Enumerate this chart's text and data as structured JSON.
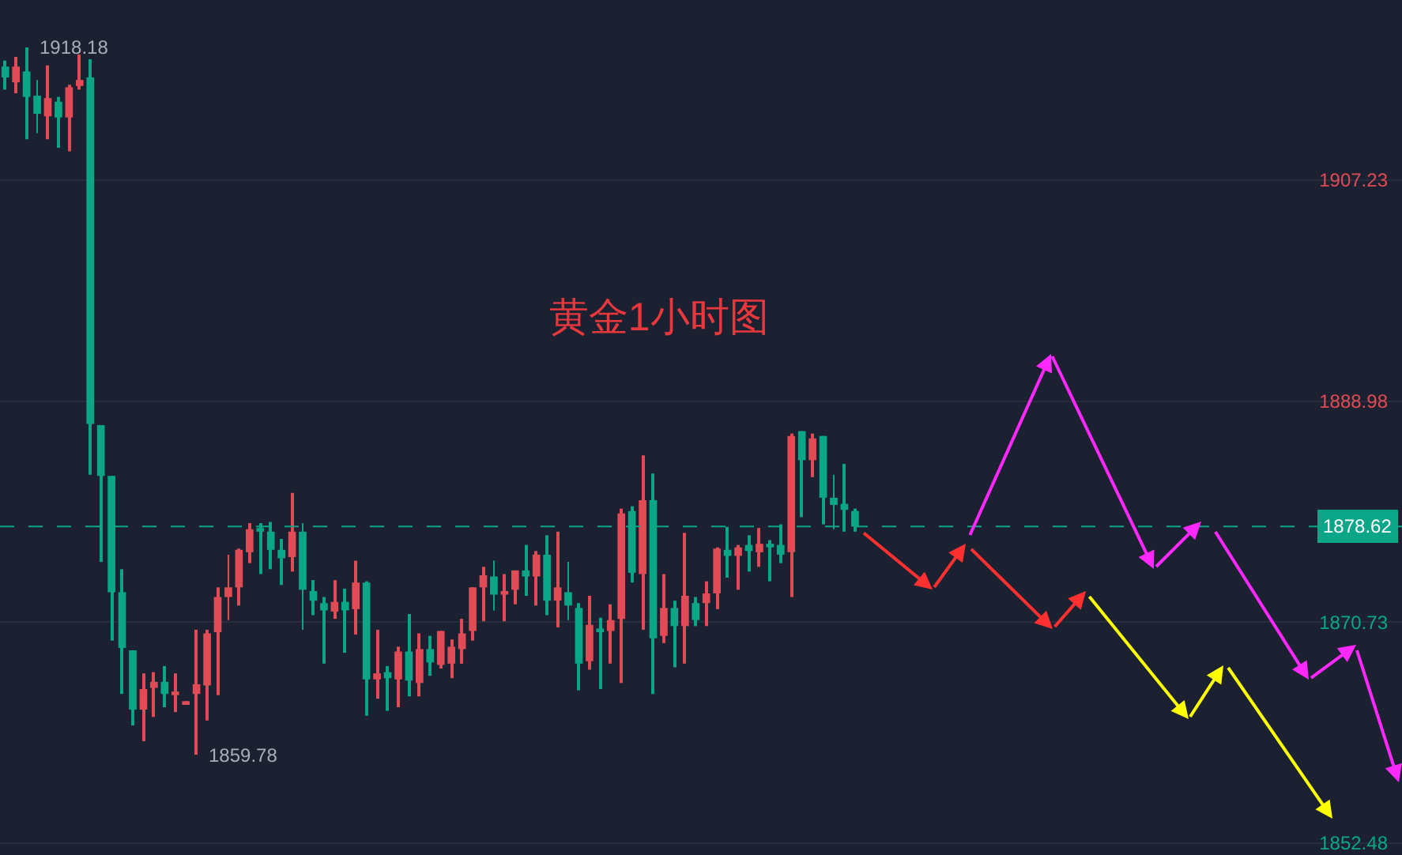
{
  "chart_data": {
    "type": "candlestick",
    "title": "黄金1小时图",
    "categories": [
      null,
      null,
      null,
      null,
      null,
      null,
      null,
      null,
      null,
      null,
      null,
      null,
      null,
      null,
      null,
      null,
      null,
      null,
      null,
      null,
      null,
      null,
      null,
      null,
      null,
      null,
      null,
      null,
      null,
      null,
      null,
      null,
      null,
      null,
      null,
      null,
      null,
      null,
      null,
      null,
      null,
      null,
      null,
      null,
      null,
      null,
      null,
      null,
      null,
      null,
      null,
      null,
      null,
      null,
      null,
      null,
      null,
      null,
      null,
      null,
      null,
      null,
      null,
      null,
      null,
      null,
      null,
      null,
      null,
      null,
      null,
      null,
      null,
      null,
      null,
      null,
      null,
      null,
      null,
      null,
      null,
      null,
      null,
      null,
      null,
      null,
      null,
      null,
      null,
      null,
      null,
      null,
      null,
      null,
      null,
      null,
      null,
      null,
      null,
      null,
      null,
      null,
      null,
      null,
      null,
      null,
      null,
      null,
      null,
      null,
      null,
      null,
      null,
      null,
      null,
      null,
      null,
      null,
      null,
      null,
      null,
      null,
      null,
      null,
      null,
      null,
      null,
      null,
      null,
      null,
      null,
      null
    ],
    "ohlc": [
      [
        1916.6,
        1917.1,
        1914.7,
        1915.7
      ],
      [
        1915.3,
        1917.4,
        1914.4,
        1916.6
      ],
      [
        1916.2,
        1918.18,
        1910.6,
        1914.1
      ],
      [
        1914.2,
        1915.5,
        1911.1,
        1912.7
      ],
      [
        1912.5,
        1916.7,
        1910.6,
        1914.0
      ],
      [
        1913.7,
        1914.1,
        1909.9,
        1912.4
      ],
      [
        1912.4,
        1915.1,
        1909.6,
        1914.9
      ],
      [
        1915.0,
        1917.6,
        1914.7,
        1915.5
      ],
      [
        1915.7,
        1917.2,
        1882.9,
        1887.1
      ],
      [
        1887.0,
        1887.0,
        1875.7,
        1882.8
      ],
      [
        1882.8,
        1882.8,
        1869.2,
        1873.2
      ],
      [
        1873.2,
        1875.1,
        1864.8,
        1868.6
      ],
      [
        1868.4,
        1868.4,
        1862.2,
        1863.5
      ],
      [
        1863.5,
        1866.5,
        1860.9,
        1865.2
      ],
      [
        1865.3,
        1866.6,
        1862.9,
        1865.8
      ],
      [
        1865.8,
        1867.1,
        1863.7,
        1864.8
      ],
      [
        1864.7,
        1866.5,
        1863.3,
        1865.0
      ],
      [
        1864.0,
        1864.2,
        1864.0,
        1864.2
      ],
      [
        1864.8,
        1870.1,
        1859.78,
        1865.6
      ],
      [
        1865.5,
        1870.1,
        1862.6,
        1869.8
      ],
      [
        1869.9,
        1873.6,
        1864.7,
        1872.8
      ],
      [
        1872.8,
        1876.3,
        1870.9,
        1873.6
      ],
      [
        1873.6,
        1876.8,
        1872.1,
        1876.7
      ],
      [
        1876.5,
        1878.9,
        1875.6,
        1878.4
      ],
      [
        1878.5,
        1878.9,
        1874.7,
        1878.2
      ],
      [
        1878.2,
        1879.0,
        1875.1,
        1876.7
      ],
      [
        1876.7,
        1877.6,
        1873.8,
        1876.0
      ],
      [
        1876.1,
        1881.4,
        1874.9,
        1878.2
      ],
      [
        1878.2,
        1878.9,
        1870.1,
        1873.4
      ],
      [
        1873.3,
        1874.2,
        1871.3,
        1872.5
      ],
      [
        1872.3,
        1872.8,
        1867.3,
        1871.7
      ],
      [
        1871.6,
        1874.2,
        1871.0,
        1872.4
      ],
      [
        1872.4,
        1873.5,
        1868.2,
        1871.7
      ],
      [
        1871.8,
        1875.8,
        1869.7,
        1874.0
      ],
      [
        1874.0,
        1874.1,
        1863.0,
        1866.0
      ],
      [
        1866.0,
        1870.1,
        1864.4,
        1866.5
      ],
      [
        1866.6,
        1867.1,
        1863.4,
        1866.1
      ],
      [
        1866.0,
        1868.7,
        1863.7,
        1868.3
      ],
      [
        1868.3,
        1871.4,
        1864.6,
        1865.9
      ],
      [
        1865.7,
        1869.8,
        1864.6,
        1868.5
      ],
      [
        1868.5,
        1869.6,
        1866.3,
        1867.4
      ],
      [
        1867.2,
        1870.0,
        1866.9,
        1870.0
      ],
      [
        1867.3,
        1869.3,
        1866.1,
        1868.7
      ],
      [
        1868.5,
        1871.0,
        1867.3,
        1869.8
      ],
      [
        1870.0,
        1873.6,
        1869.2,
        1873.6
      ],
      [
        1873.6,
        1875.3,
        1870.8,
        1874.6
      ],
      [
        1874.5,
        1875.8,
        1871.7,
        1873.0
      ],
      [
        1873.0,
        1874.7,
        1870.8,
        1873.3
      ],
      [
        1873.4,
        1875.0,
        1872.2,
        1875.0
      ],
      [
        1875.0,
        1877.1,
        1872.9,
        1874.5
      ],
      [
        1874.5,
        1876.6,
        1872.1,
        1876.3
      ],
      [
        1876.3,
        1877.9,
        1871.3,
        1872.5
      ],
      [
        1872.5,
        1878.2,
        1870.3,
        1873.6
      ],
      [
        1873.2,
        1875.7,
        1870.9,
        1872.1
      ],
      [
        1871.9,
        1872.3,
        1865.1,
        1867.3
      ],
      [
        1867.5,
        1872.9,
        1866.8,
        1870.5
      ],
      [
        1870.2,
        1871.1,
        1865.2,
        1870.0
      ],
      [
        1870.0,
        1872.2,
        1867.3,
        1870.9
      ],
      [
        1871.0,
        1880.1,
        1865.7,
        1879.7
      ],
      [
        1879.9,
        1880.3,
        1874.0,
        1874.8
      ],
      [
        1874.7,
        1884.5,
        1870.1,
        1880.8
      ],
      [
        1880.8,
        1883.0,
        1864.8,
        1869.4
      ],
      [
        1869.6,
        1874.7,
        1869.0,
        1871.9
      ],
      [
        1871.9,
        1872.5,
        1867.0,
        1870.4
      ],
      [
        1870.4,
        1878.1,
        1867.3,
        1872.9
      ],
      [
        1872.3,
        1872.8,
        1870.4,
        1870.9
      ],
      [
        1872.3,
        1874.1,
        1870.4,
        1873.1
      ],
      [
        1873.1,
        1876.9,
        1871.8,
        1876.8
      ],
      [
        1876.7,
        1878.6,
        1874.4,
        1876.2
      ],
      [
        1876.2,
        1877.1,
        1873.4,
        1876.9
      ],
      [
        1877.1,
        1877.9,
        1874.9,
        1876.6
      ],
      [
        1876.5,
        1878.5,
        1875.3,
        1877.2
      ],
      [
        1877.2,
        1877.5,
        1874.1,
        1876.9
      ],
      [
        1877.1,
        1878.8,
        1875.6,
        1876.3
      ],
      [
        1876.5,
        1886.3,
        1872.8,
        1886.1
      ],
      [
        1886.5,
        1886.5,
        1879.4,
        1884.1
      ],
      [
        1884.1,
        1886.3,
        1882.7,
        1885.9
      ],
      [
        1886.1,
        1886.1,
        1878.8,
        1881.0
      ],
      [
        1881.0,
        1882.9,
        1878.4,
        1880.4
      ],
      [
        1880.5,
        1883.8,
        1878.2,
        1880.0
      ],
      [
        1879.9,
        1880.1,
        1878.2,
        1878.62
      ],
      null,
      null,
      null,
      null,
      null,
      null,
      null,
      null,
      null,
      null,
      null,
      null,
      null,
      null,
      null,
      null,
      null,
      null,
      null,
      null,
      null,
      null,
      null,
      null,
      null,
      null,
      null,
      null,
      null,
      null,
      null,
      null,
      null,
      null,
      null,
      null,
      null,
      null,
      null,
      null,
      null,
      null,
      null,
      null,
      null,
      null,
      null,
      null,
      null,
      null,
      null
    ],
    "colors": [
      "#0ba687",
      "#e04b55",
      "#0ba687",
      "#0ba687",
      "#e04b55",
      "#0ba687",
      "#e04b55",
      "#e04b55",
      "#0ba687",
      "#0ba687",
      "#0ba687",
      "#0ba687",
      "#0ba687",
      "#e04b55",
      "#e04b55",
      "#0ba687",
      "#e04b55",
      "#e04b55",
      "#e04b55",
      "#e04b55",
      "#e04b55",
      "#e04b55",
      "#e04b55",
      "#e04b55",
      "#0ba687",
      "#0ba687",
      "#0ba687",
      "#e04b55",
      "#0ba687",
      "#0ba687",
      "#0ba687",
      "#e04b55",
      "#0ba687",
      "#e04b55",
      "#0ba687",
      "#e04b55",
      "#0ba687",
      "#e04b55",
      "#0ba687",
      "#e04b55",
      "#0ba687",
      "#e04b55",
      "#e04b55",
      "#e04b55",
      "#e04b55",
      "#e04b55",
      "#0ba687",
      "#e04b55",
      "#e04b55",
      "#0ba687",
      "#e04b55",
      "#0ba687",
      "#e04b55",
      "#0ba687",
      "#0ba687",
      "#e04b55",
      "#0ba687",
      "#e04b55",
      "#e04b55",
      "#0ba687",
      "#e04b55",
      "#0ba687",
      "#e04b55",
      "#0ba687",
      "#e04b55",
      "#0ba687",
      "#e04b55",
      "#e04b55",
      "#0ba687",
      "#e04b55",
      "#0ba687",
      "#e04b55",
      "#0ba687",
      "#0ba687",
      "#e04b55",
      "#0ba687",
      "#e04b55",
      "#0ba687",
      "#0ba687",
      "#0ba687",
      "#0ba687",
      null,
      null,
      null,
      null,
      null,
      null,
      null,
      null,
      null,
      null,
      null,
      null,
      null,
      null,
      null,
      null,
      null,
      null,
      null,
      null,
      null,
      null,
      null,
      null,
      null,
      null,
      null,
      null,
      null,
      null,
      null,
      null,
      null,
      null,
      null,
      null,
      null,
      null,
      null,
      null,
      null,
      null,
      null,
      null,
      null,
      null,
      null,
      null,
      null,
      null,
      null
    ],
    "ylim": [
      1851.5,
      1922.1
    ],
    "yticks": [
      1907.23,
      1888.98,
      1870.73,
      1852.48
    ],
    "ref_lines": [
      {
        "axis": "y",
        "value": 1878.62,
        "label": "1878.62",
        "color": "#0ba687",
        "line_style": "dashed"
      }
    ],
    "annotations": [
      "1918.18",
      "1859.78"
    ],
    "grid": "y"
  }
}
